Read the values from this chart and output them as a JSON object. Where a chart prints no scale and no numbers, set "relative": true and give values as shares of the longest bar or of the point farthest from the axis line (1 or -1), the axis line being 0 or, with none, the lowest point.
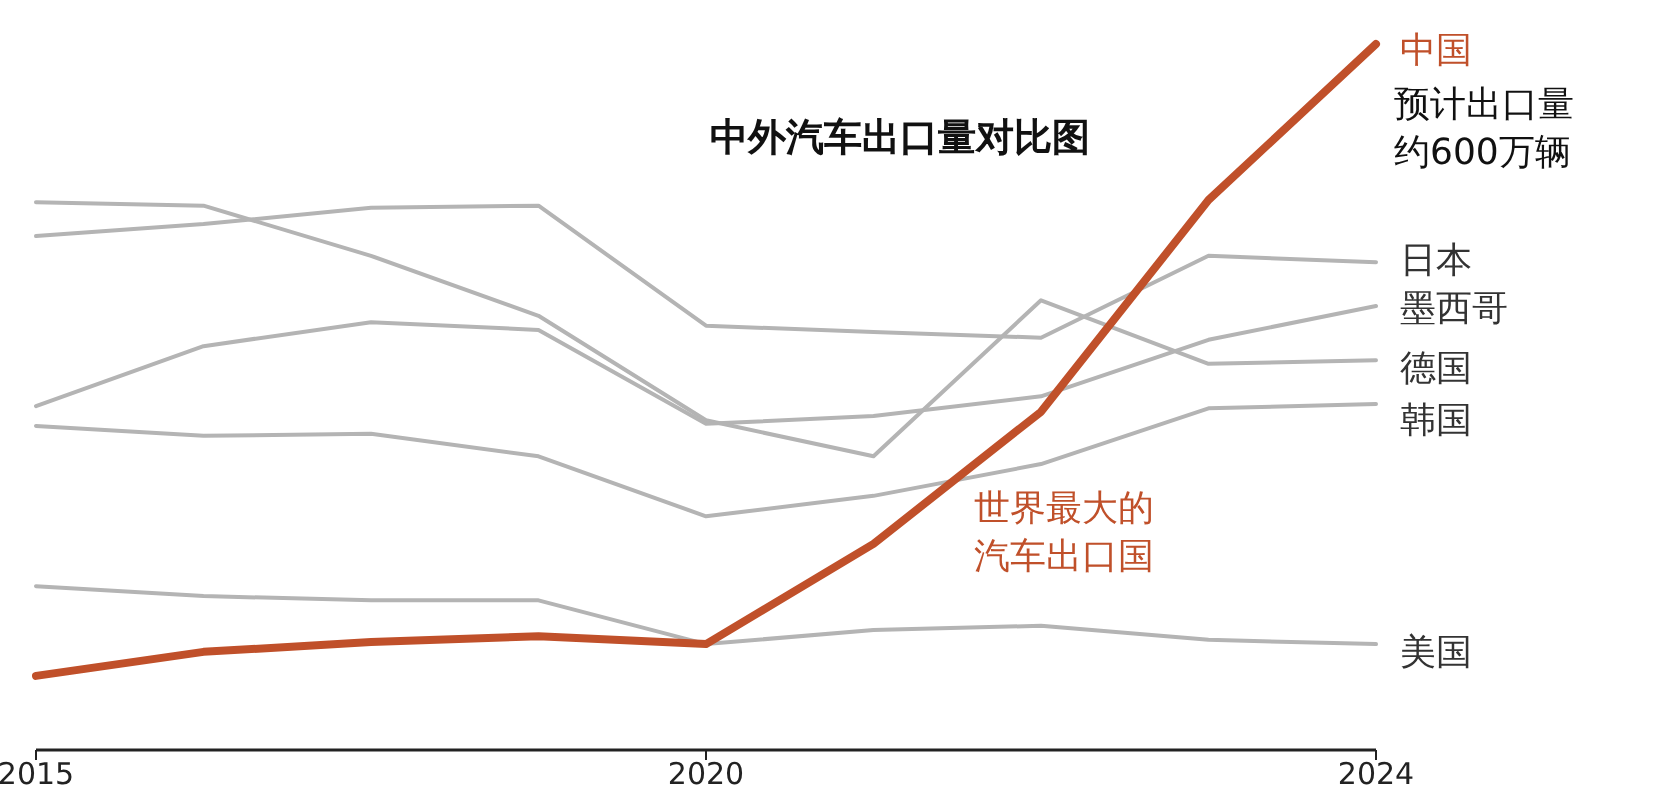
{
  "chart_data": {
    "type": "line",
    "title": "中外汽车出口量对比图",
    "relative": true,
    "marker": "none",
    "grid": false,
    "categories": [
      "2015",
      null,
      null,
      null,
      "2020",
      null,
      null,
      null,
      "2024"
    ],
    "series": [
      {
        "name": "中国",
        "color": "#c0502a",
        "values": [
          0.105,
          0.139,
          0.153,
          0.161,
          0.15,
          0.292,
          0.479,
          0.779,
          1
        ]
      },
      {
        "name": "日本",
        "color": "#b4b4b4",
        "values": [
          0.728,
          0.745,
          0.768,
          0.771,
          0.601,
          0.592,
          0.584,
          0.7,
          0.691
        ]
      },
      {
        "name": "墨西哥",
        "color": "#b4b4b4",
        "values": [
          0.487,
          0.572,
          0.606,
          0.595,
          0.462,
          0.473,
          0.501,
          0.581,
          0.629
        ]
      },
      {
        "name": "德国",
        "color": "#b4b4b4",
        "values": [
          0.776,
          0.771,
          0.7,
          0.615,
          0.467,
          0.416,
          0.637,
          0.547,
          0.552
        ]
      },
      {
        "name": "韩国",
        "color": "#b4b4b4",
        "values": [
          0.459,
          0.445,
          0.448,
          0.416,
          0.331,
          0.36,
          0.405,
          0.484,
          0.49
        ]
      },
      {
        "name": "美国",
        "color": "#b4b4b4",
        "values": [
          0.232,
          0.218,
          0.212,
          0.212,
          0.15,
          0.17,
          0.176,
          0.156,
          0.15
        ]
      }
    ],
    "annotations": [
      "预计出口量",
      "约600万辆",
      "世界最大的",
      "汽车出口国"
    ]
  }
}
